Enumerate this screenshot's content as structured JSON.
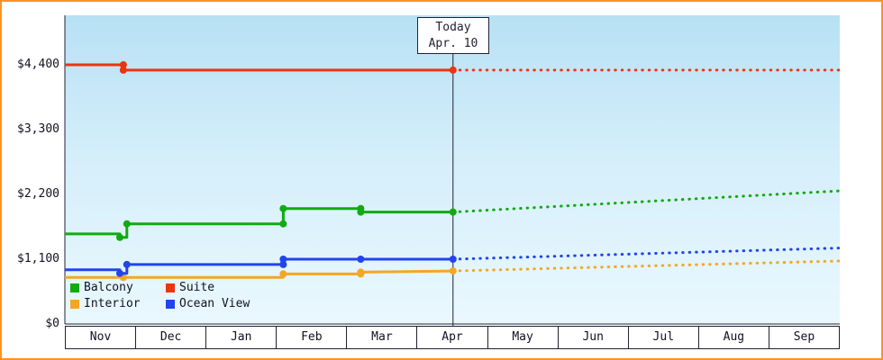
{
  "window": {
    "frame_border_color": "#ff9224"
  },
  "chart_data": {
    "type": "line",
    "title": "",
    "xlabel": "",
    "ylabel": "",
    "grid": false,
    "legend_position": "bottom-left",
    "x_categories": [
      "Nov",
      "Dec",
      "Jan",
      "Feb",
      "Mar",
      "Apr",
      "May",
      "Jun",
      "Jul",
      "Aug",
      "Sep"
    ],
    "y_tick_labels": [
      "$0",
      "$1,100",
      "$2,200",
      "$3,300",
      "$4,400"
    ],
    "y_tick_values": [
      0,
      1100,
      2200,
      3300,
      4400
    ],
    "ylim": [
      0,
      4400
    ],
    "today_marker": {
      "label_line1": "Today",
      "label_line2": "Apr. 10",
      "month_x": 5.01
    },
    "series": [
      {
        "name": "Interior",
        "color": "#f5a623",
        "solid": [
          {
            "x": -0.5,
            "y": 790
          },
          {
            "x": 0.33,
            "y": 790,
            "m": 1
          },
          {
            "x": 2.6,
            "y": 790
          },
          {
            "x": 2.6,
            "y": 850,
            "m": 1
          },
          {
            "x": 3.7,
            "y": 850,
            "m": 1
          },
          {
            "x": 3.7,
            "y": 880,
            "m": 1
          },
          {
            "x": 5.01,
            "y": 900,
            "m": 1
          }
        ],
        "dashed": [
          {
            "x": 5.01,
            "y": 900
          },
          {
            "x": 10.5,
            "y": 1070
          }
        ]
      },
      {
        "name": "Ocean View",
        "color": "#2244ee",
        "solid": [
          {
            "x": -0.5,
            "y": 920
          },
          {
            "x": 0.28,
            "y": 920
          },
          {
            "x": 0.28,
            "y": 860,
            "m": 1
          },
          {
            "x": 0.38,
            "y": 860
          },
          {
            "x": 0.38,
            "y": 1010,
            "m": 1
          },
          {
            "x": 2.6,
            "y": 1010,
            "m": 1
          },
          {
            "x": 2.6,
            "y": 1100,
            "m": 1
          },
          {
            "x": 3.7,
            "y": 1100,
            "m": 1
          },
          {
            "x": 5.01,
            "y": 1100,
            "m": 1
          }
        ],
        "dashed": [
          {
            "x": 5.01,
            "y": 1100
          },
          {
            "x": 10.5,
            "y": 1290
          }
        ]
      },
      {
        "name": "Balcony",
        "color": "#11aa11",
        "solid": [
          {
            "x": -0.5,
            "y": 1530
          },
          {
            "x": 0.28,
            "y": 1530
          },
          {
            "x": 0.28,
            "y": 1470,
            "m": 1
          },
          {
            "x": 0.38,
            "y": 1470
          },
          {
            "x": 0.38,
            "y": 1700,
            "m": 1
          },
          {
            "x": 2.6,
            "y": 1700,
            "m": 1
          },
          {
            "x": 2.6,
            "y": 1960,
            "m": 1
          },
          {
            "x": 3.7,
            "y": 1960,
            "m": 1
          },
          {
            "x": 3.7,
            "y": 1900,
            "m": 1
          },
          {
            "x": 5.01,
            "y": 1900,
            "m": 1
          }
        ],
        "dashed": [
          {
            "x": 5.01,
            "y": 1900
          },
          {
            "x": 10.5,
            "y": 2260
          }
        ]
      },
      {
        "name": "Suite",
        "color": "#ee3311",
        "solid": [
          {
            "x": -0.5,
            "y": 4400
          },
          {
            "x": 0.33,
            "y": 4400,
            "m": 1
          },
          {
            "x": 0.33,
            "y": 4310,
            "m": 1
          },
          {
            "x": 5.01,
            "y": 4310,
            "m": 1
          }
        ],
        "dashed": [
          {
            "x": 5.01,
            "y": 4310
          },
          {
            "x": 10.5,
            "y": 4310
          }
        ]
      }
    ],
    "legend": [
      {
        "label": "Balcony",
        "color": "#11aa11"
      },
      {
        "label": "Suite",
        "color": "#ee3311"
      },
      {
        "label": "Interior",
        "color": "#f5a623"
      },
      {
        "label": "Ocean View",
        "color": "#2244ee"
      }
    ]
  }
}
